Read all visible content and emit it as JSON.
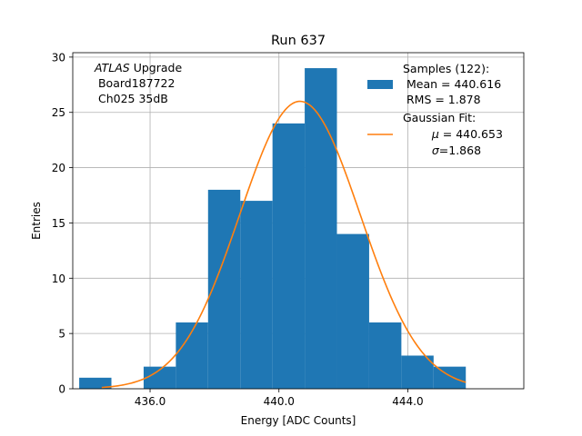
{
  "chart_data": {
    "type": "bar",
    "title": "Run 637",
    "xlabel": "Energy [ADC Counts]",
    "ylabel": "Entries",
    "xlim": [
      433.6,
      447.6
    ],
    "ylim": [
      0,
      30.4
    ],
    "xticks": [
      436.0,
      440.0,
      444.0
    ],
    "xtick_labels": [
      "436.0",
      "440.0",
      "444.0"
    ],
    "yticks": [
      0,
      5,
      10,
      15,
      20,
      25,
      30
    ],
    "ytick_labels": [
      "0",
      "5",
      "10",
      "15",
      "20",
      "25",
      "30"
    ],
    "grid": true,
    "legend_position": "top-right",
    "bins": [
      {
        "x0": 433.8,
        "x1": 434.8,
        "count": 1
      },
      {
        "x0": 434.8,
        "x1": 435.8,
        "count": 0
      },
      {
        "x0": 435.8,
        "x1": 436.8,
        "count": 2
      },
      {
        "x0": 436.8,
        "x1": 437.8,
        "count": 6
      },
      {
        "x0": 437.8,
        "x1": 438.8,
        "count": 18
      },
      {
        "x0": 438.8,
        "x1": 439.8,
        "count": 17
      },
      {
        "x0": 439.8,
        "x1": 440.8,
        "count": 24
      },
      {
        "x0": 440.8,
        "x1": 441.8,
        "count": 29
      },
      {
        "x0": 441.8,
        "x1": 442.8,
        "count": 14
      },
      {
        "x0": 442.8,
        "x1": 443.8,
        "count": 6
      },
      {
        "x0": 443.8,
        "x1": 444.8,
        "count": 3
      },
      {
        "x0": 444.8,
        "x1": 445.8,
        "count": 2
      }
    ],
    "series": [
      {
        "name": "Samples (122):",
        "kind": "histogram",
        "color": "#1f77b4"
      },
      {
        "name": "Gaussian Fit:",
        "kind": "line",
        "color": "#ff7f0e",
        "mu": 440.653,
        "sigma": 1.868,
        "amplitude": 26,
        "x_range": [
          434.5,
          445.8
        ]
      }
    ],
    "legend": {
      "samples_title": "Samples (122):",
      "samples_mean": " Mean = 440.616",
      "samples_rms": " RMS = 1.878",
      "fit_title": "Gaussian Fit:",
      "fit_mu_symbol": "μ",
      "fit_mu_value": " = 440.653",
      "fit_sigma_symbol": "σ",
      "fit_sigma_value": "=1.868"
    },
    "annotation": {
      "italic": "ATLAS",
      "line1_rest": " Upgrade",
      "line2": " Board187722",
      "line3": " Ch025 35dB"
    }
  },
  "colors": {
    "bar": "#1f77b4",
    "fit": "#ff7f0e",
    "grid": "#b0b0b0"
  }
}
